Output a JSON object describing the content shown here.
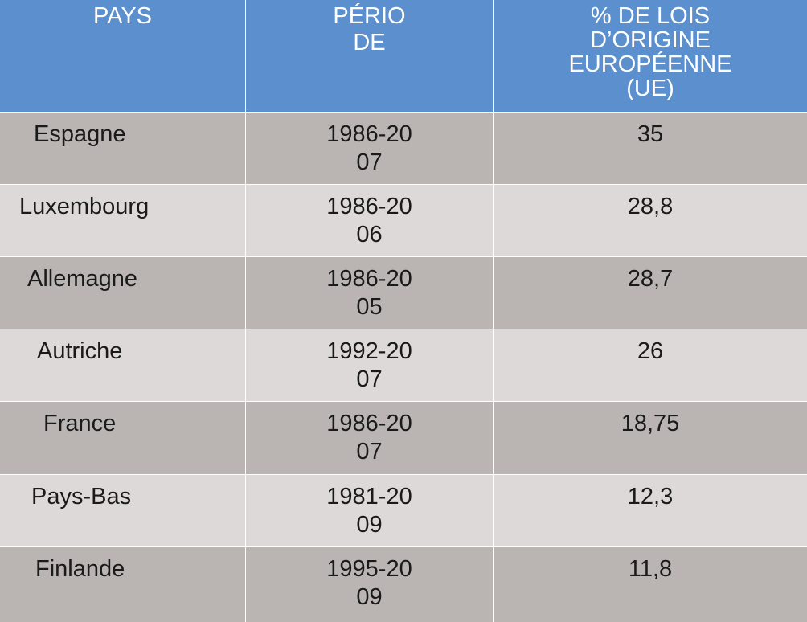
{
  "table": {
    "headers": [
      [
        "PAYS"
      ],
      [
        "PÉRIO",
        "DE"
      ],
      [
        "% DE LOIS",
        "D’ORIGINE",
        "EUROPÉENNE",
        "(UE)"
      ]
    ],
    "rows": [
      {
        "country": "Espagne",
        "period": [
          "1986-20",
          "07"
        ],
        "percent": "35"
      },
      {
        "country": "Luxembourg",
        "period": [
          "1986-20",
          "06"
        ],
        "percent": "28,8"
      },
      {
        "country": "Allemagne",
        "period": [
          "1986-20",
          "05"
        ],
        "percent": "28,7"
      },
      {
        "country": "Autriche",
        "period": [
          "1992-20",
          "07"
        ],
        "percent": "26"
      },
      {
        "country": "France",
        "period": [
          "1986-20",
          "07"
        ],
        "percent": "18,75"
      },
      {
        "country": "Pays-Bas",
        "period": [
          "1981-20",
          "09"
        ],
        "percent": "12,3"
      },
      {
        "country": "Finlande",
        "period": [
          "1995-20",
          "09"
        ],
        "percent": "11,8"
      }
    ],
    "colors": {
      "header": "#5b8fcd",
      "row_dark": "#bab5b2",
      "row_light": "#dcd9d8"
    }
  }
}
